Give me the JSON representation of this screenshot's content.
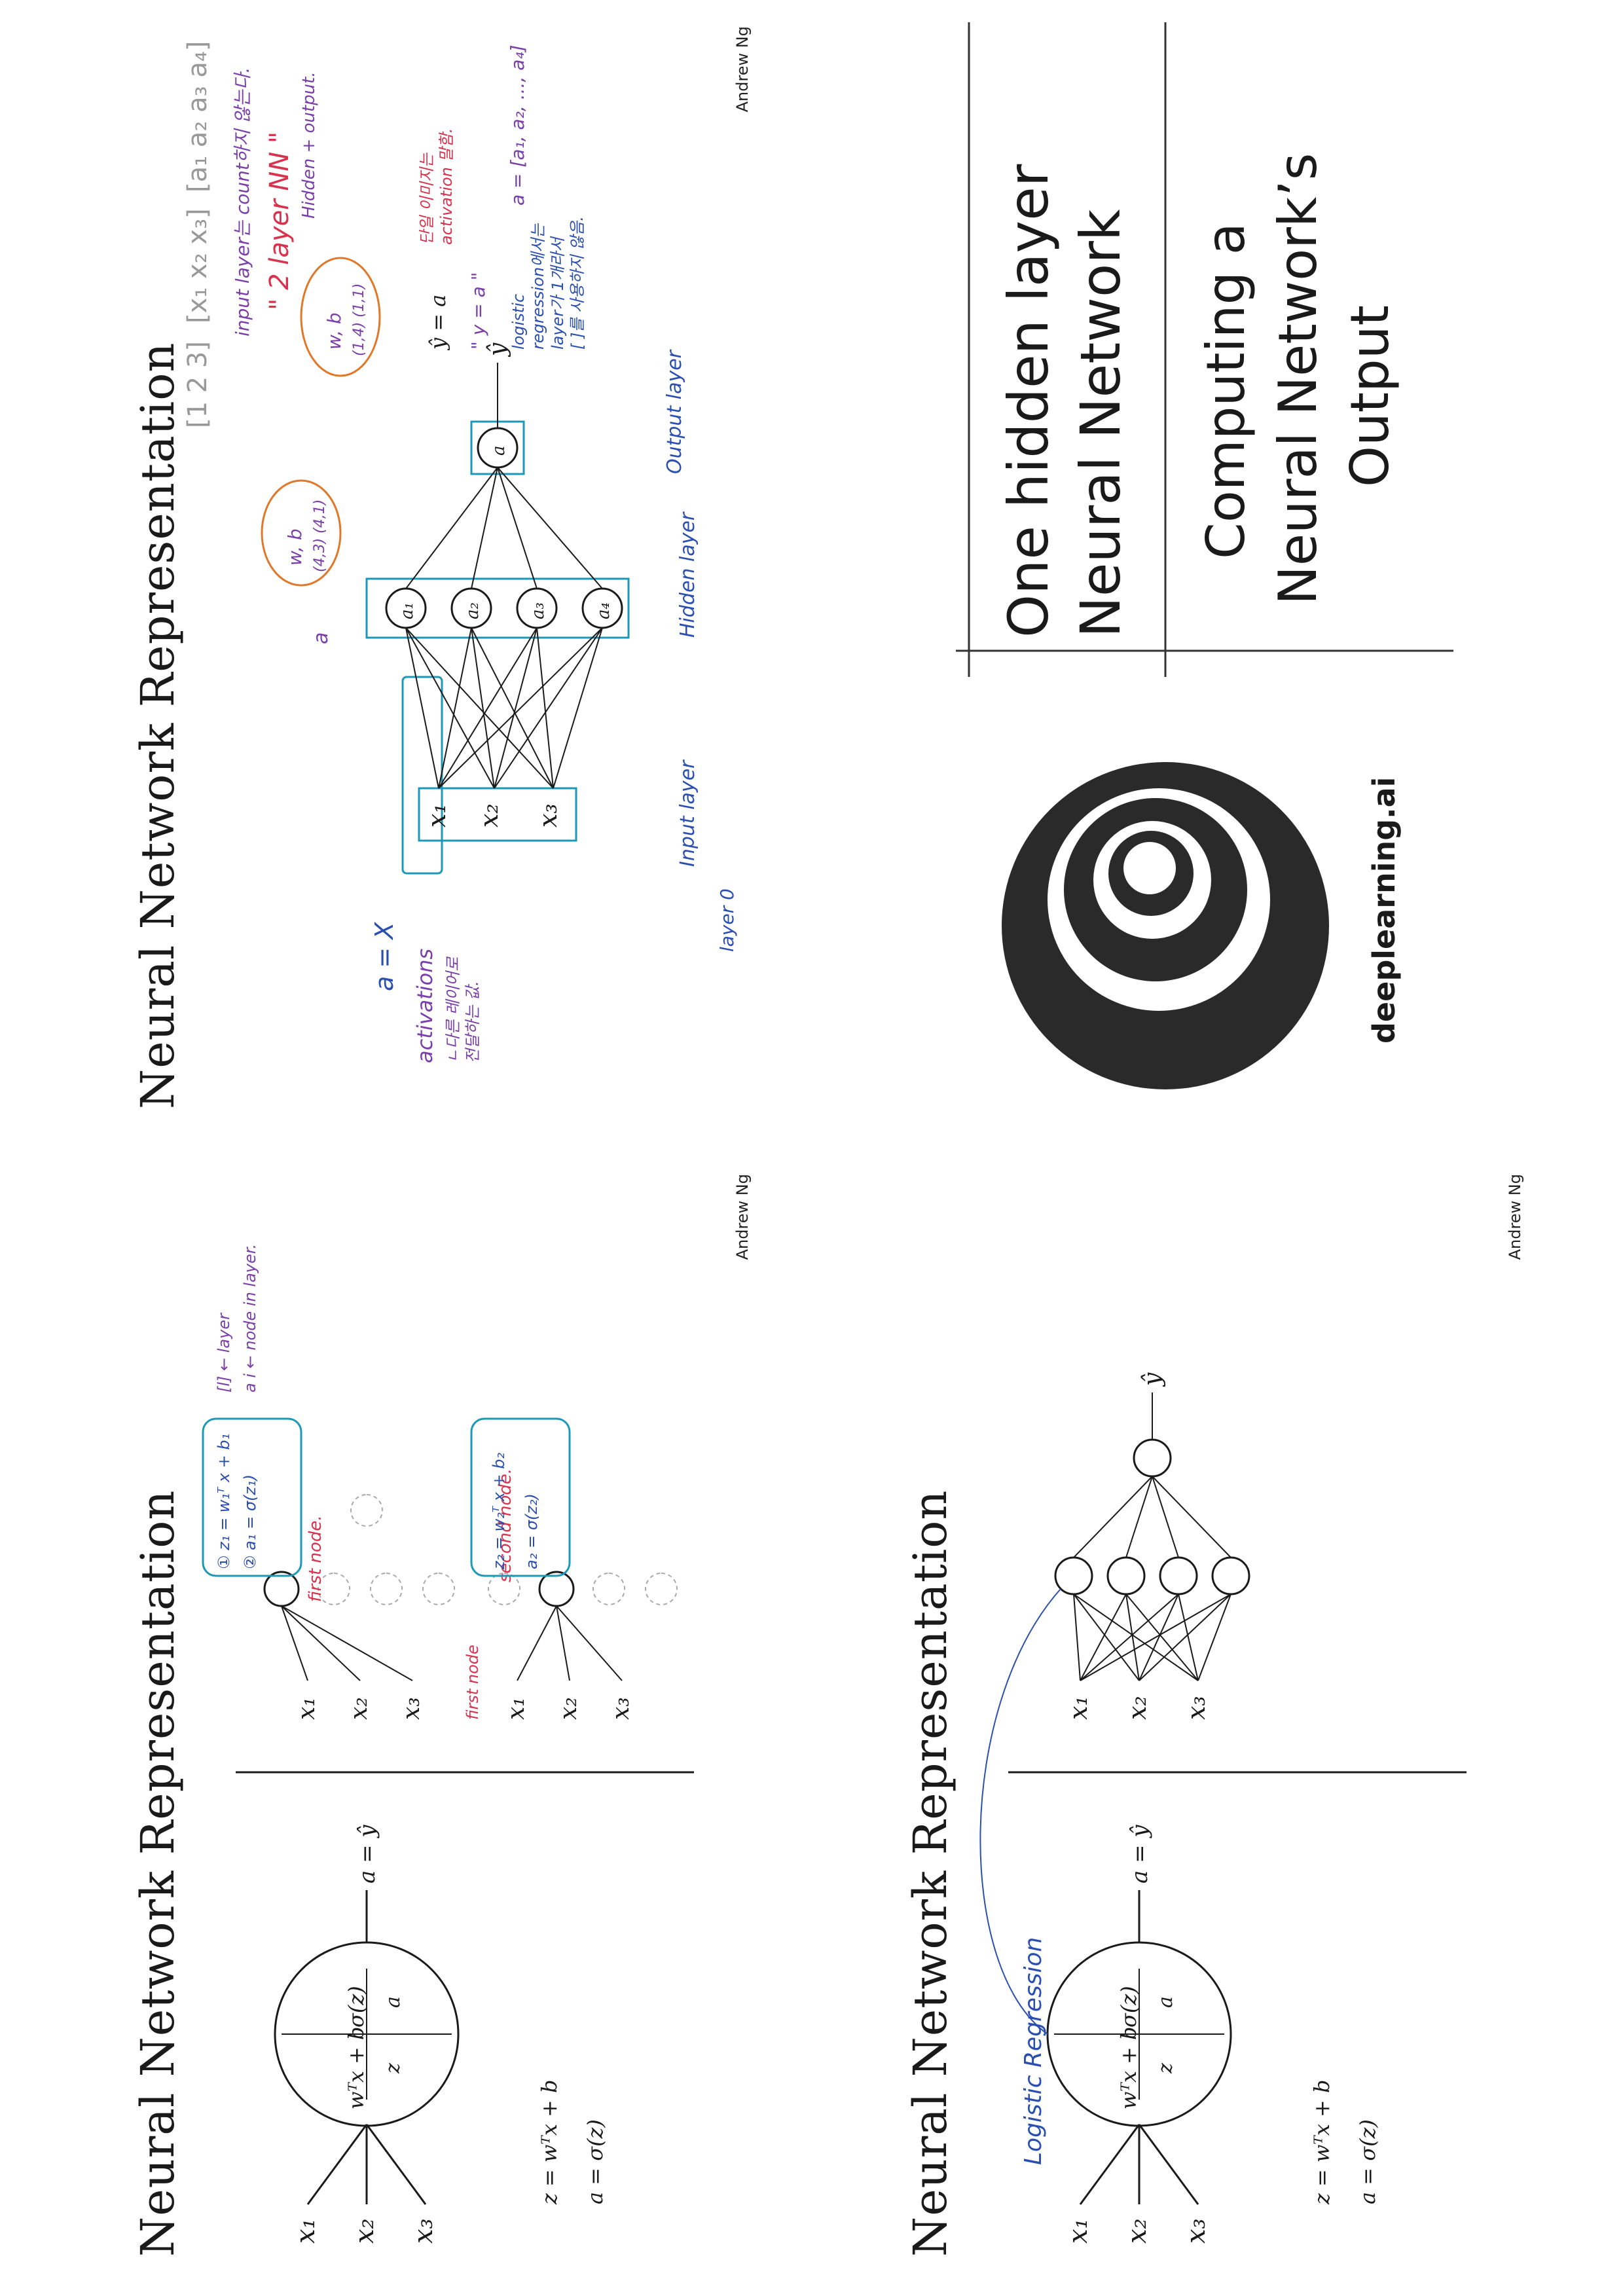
{
  "author": "Andrew Ng",
  "slide1": {
    "title": "Neural Network Representation",
    "inputs": [
      "x₁",
      "x₂",
      "x₃"
    ],
    "hidden_nodes": [
      "a₁",
      "a₂",
      "a₃",
      "a₄"
    ],
    "output_node": "a",
    "y_hat": "ŷ",
    "notes": {
      "a0_eq": "a = X",
      "activations": "activations",
      "activations_ko": "ㄴ다른 레이어로",
      "activations_ko2": "전달하는 값.",
      "input_layer": "Input layer",
      "layer_zero": "layer 0",
      "hidden_layer": "Hidden layer",
      "output_layer": "Output layer",
      "w1b1": "w, b",
      "w1b1_dims": "(4,3)  (4,1)",
      "w2b2": "w, b",
      "w2b2_dims": "(1,4)  (1,1)",
      "a_super": "a",
      "yhat_eq": "ŷ = a",
      "yhat_note": "단일 이미지는",
      "yhat_note2": "activation 말함.",
      "y_eq": "\" y = a \"",
      "logistic": "logistic",
      "logistic2": "regression에서는",
      "logistic3": "layer가 1개라서",
      "logistic4": "[ ]를 사용하지 않음.",
      "a1_vec": "a = [a₁, a₂, ..., a₄]",
      "input_not_counted": "input layer는 count하지 않는다.",
      "two_layer": "\" 2 layer  NN \"",
      "hidden_output": "Hidden + output.",
      "matrix_left": "[1 2 3]",
      "matrix_mid": "[x₁ x₂ x₃]",
      "matrix_right": "[a₁ a₂ a₃ a₄]"
    }
  },
  "slide2": {
    "logo_text": "deeplearning.ai",
    "title_line1": "One hidden layer",
    "title_line2": "Neural Network",
    "subtitle_line1": "Computing a",
    "subtitle_line2": "Neural Network’s",
    "subtitle_line3": "Output"
  },
  "slide3": {
    "title": "Neural Network Representation",
    "inputs": [
      "x₁",
      "x₂",
      "x₃"
    ],
    "node_left": "wᵀx + b",
    "node_right": "σ(z)",
    "node_z": "z",
    "node_a": "a",
    "out_label": "a = ŷ",
    "eq1": "z = wᵀx + b",
    "eq2": "a = σ(z)",
    "logistic_note": "Logistic Regression",
    "net_inputs": [
      "x₁",
      "x₂",
      "x₃"
    ],
    "net_out": "ŷ"
  },
  "slide4": {
    "title": "Neural Network Representation",
    "inputs": [
      "x₁",
      "x₂",
      "x₃"
    ],
    "node_left": "wᵀx + b",
    "node_right": "σ(z)",
    "node_z": "z",
    "node_a": "a",
    "out_label": "a = ŷ",
    "eq1": "z = wᵀx + b",
    "eq2": "a = σ(z)",
    "upper_inputs": [
      "x₁",
      "x₂",
      "x₃"
    ],
    "lower_inputs": [
      "x₁",
      "x₂",
      "x₃"
    ],
    "first_node": "first node.",
    "first_node2": "first node",
    "second_node": "second node.",
    "box1_line1": "① z₁ = w₁ᵀ x + b₁",
    "box1_line2": "② a₁ = σ(z₁)",
    "layer_note": "[l] ← layer",
    "node_note": "a i ← node in layer.",
    "box2_line1": "z₂ = w₂ᵀ x + b₂",
    "box2_line2": "a₂ = σ(z₂)"
  }
}
